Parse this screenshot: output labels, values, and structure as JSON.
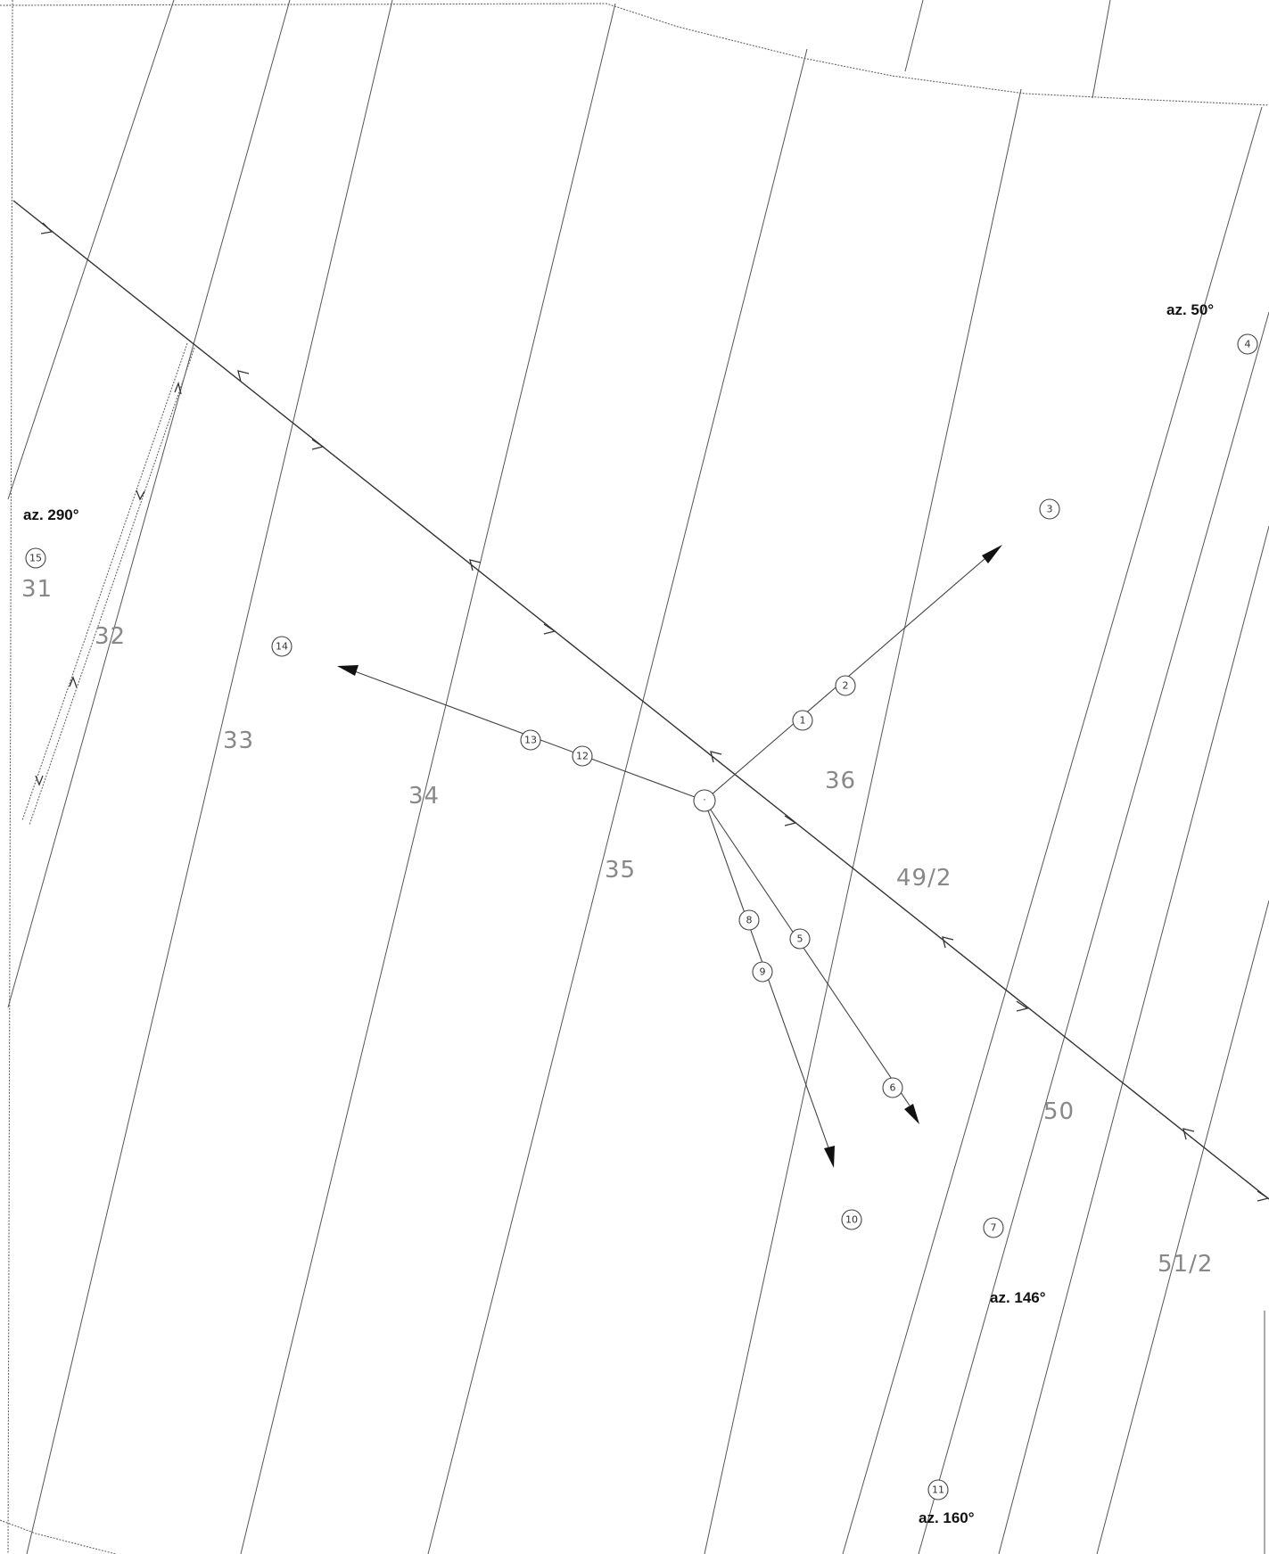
{
  "parcels": [
    "31",
    "32",
    "33",
    "34",
    "35",
    "36",
    "49/2",
    "50",
    "51/2"
  ],
  "azimuths": [
    "az. 50°",
    "az. 290°",
    "az. 146°",
    "az. 160°"
  ],
  "markers": [
    "1",
    "2",
    "3",
    "4",
    "5",
    "6",
    "7",
    "8",
    "9",
    "10",
    "11",
    "12",
    "13",
    "14",
    "15"
  ],
  "station": "·",
  "colors": {
    "line": "#555555",
    "route": "#333333",
    "label": "#888888",
    "azimuth": "#111111"
  }
}
